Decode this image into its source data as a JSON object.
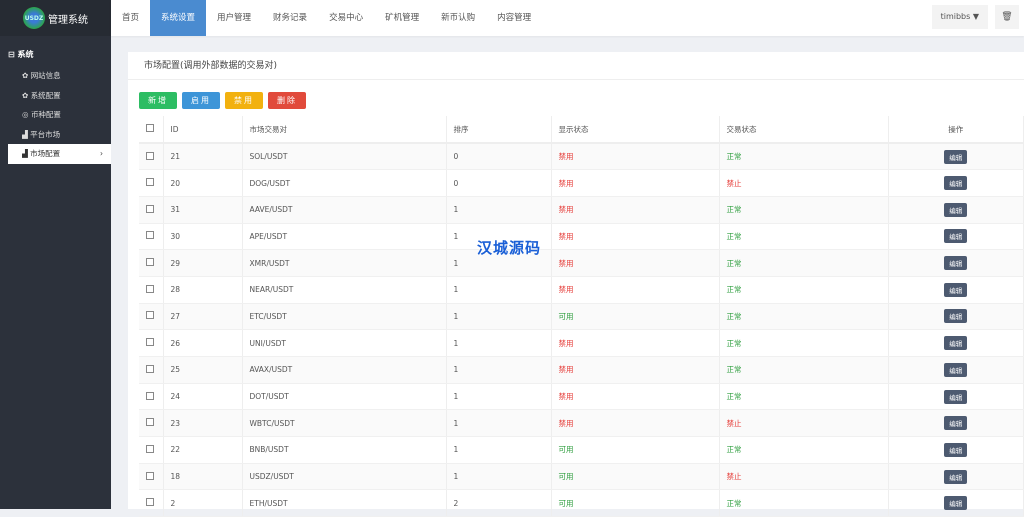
{
  "logo": {
    "badge": "USDZ",
    "title": "管理系统"
  },
  "sidebar": {
    "group": "系统",
    "items": [
      {
        "icon": "gear-icon",
        "glyph": "✿",
        "label": "网站信息"
      },
      {
        "icon": "gear-icon",
        "glyph": "✿",
        "label": "系统配置"
      },
      {
        "icon": "coin-icon",
        "glyph": "◎",
        "label": "币种配置"
      },
      {
        "icon": "bar-chart-icon",
        "glyph": "▟",
        "label": "平台市场"
      },
      {
        "icon": "bar-chart-icon",
        "glyph": "▟",
        "label": "市场配置",
        "active": true
      }
    ]
  },
  "nav": [
    "首页",
    "系统设置",
    "用户管理",
    "财务记录",
    "交易中心",
    "矿机管理",
    "新币认购",
    "内容管理"
  ],
  "nav_active": 1,
  "user": {
    "name": "timibbs",
    "caret": "▼"
  },
  "card": {
    "title": "市场配置(调用外部数据的交易对)"
  },
  "buttons": [
    {
      "label": "新增",
      "color": "#2dbd63"
    },
    {
      "label": "启用",
      "color": "#3d95d8"
    },
    {
      "label": "禁用",
      "color": "#f2b10f"
    },
    {
      "label": "删除",
      "color": "#e14a3b"
    }
  ],
  "table": {
    "headers": [
      "ID",
      "市场交易对",
      "排序",
      "显示状态",
      "交易状态",
      "操作"
    ],
    "edit_label": "编辑",
    "rows": [
      [
        "21",
        "SOL/USDT",
        "0",
        "禁用",
        "正常"
      ],
      [
        "20",
        "DOG/USDT",
        "0",
        "禁用",
        "禁止"
      ],
      [
        "31",
        "AAVE/USDT",
        "1",
        "禁用",
        "正常"
      ],
      [
        "30",
        "APE/USDT",
        "1",
        "禁用",
        "正常"
      ],
      [
        "29",
        "XMR/USDT",
        "1",
        "禁用",
        "正常"
      ],
      [
        "28",
        "NEAR/USDT",
        "1",
        "禁用",
        "正常"
      ],
      [
        "27",
        "ETC/USDT",
        "1",
        "可用",
        "正常"
      ],
      [
        "26",
        "UNI/USDT",
        "1",
        "禁用",
        "正常"
      ],
      [
        "25",
        "AVAX/USDT",
        "1",
        "禁用",
        "正常"
      ],
      [
        "24",
        "DOT/USDT",
        "1",
        "禁用",
        "正常"
      ],
      [
        "23",
        "WBTC/USDT",
        "1",
        "禁用",
        "禁止"
      ],
      [
        "22",
        "BNB/USDT",
        "1",
        "可用",
        "正常"
      ],
      [
        "18",
        "USDZ/USDT",
        "1",
        "可用",
        "禁止"
      ],
      [
        "2",
        "ETH/USDT",
        "2",
        "可用",
        "正常"
      ]
    ]
  },
  "watermark": "汉城源码"
}
